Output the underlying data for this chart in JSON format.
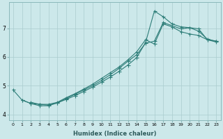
{
  "xlabel": "Humidex (Indice chaleur)",
  "ylabel": "",
  "bg_color": "#cce8ea",
  "grid_color": "#aaccce",
  "line_color": "#2d7d78",
  "marker_color": "#2d7d78",
  "xlim": [
    -0.5,
    23.5
  ],
  "ylim": [
    3.8,
    7.9
  ],
  "xticks": [
    0,
    1,
    2,
    3,
    4,
    5,
    6,
    7,
    8,
    9,
    10,
    11,
    12,
    13,
    14,
    15,
    16,
    17,
    18,
    19,
    20,
    21,
    22,
    23
  ],
  "yticks": [
    4,
    5,
    6,
    7
  ],
  "line1_x": [
    0,
    1,
    2,
    3,
    4,
    5,
    6,
    7,
    8,
    9,
    10,
    11,
    12,
    13,
    14,
    15,
    16,
    17,
    18,
    19,
    20,
    21,
    22,
    23
  ],
  "line1_y": [
    4.85,
    4.5,
    4.38,
    4.3,
    4.3,
    4.4,
    4.52,
    4.65,
    4.8,
    4.95,
    5.12,
    5.3,
    5.5,
    5.72,
    5.98,
    6.5,
    7.6,
    7.4,
    7.15,
    7.05,
    7.02,
    6.98,
    6.6,
    6.52
  ],
  "line2_x": [
    1,
    2,
    3,
    4,
    5,
    6,
    7,
    8,
    9,
    10,
    11,
    12,
    13,
    14,
    15,
    16,
    17,
    19,
    20,
    21,
    22,
    23
  ],
  "line2_y": [
    4.5,
    4.38,
    4.35,
    4.32,
    4.4,
    4.55,
    4.7,
    4.85,
    5.0,
    5.18,
    5.38,
    5.6,
    5.85,
    6.08,
    6.48,
    6.55,
    7.2,
    6.98,
    7.02,
    6.9,
    6.62,
    6.55
  ],
  "line3_x": [
    2,
    3,
    4,
    5,
    6,
    7,
    8,
    9,
    10,
    11,
    12,
    13,
    14,
    15,
    16,
    17,
    18,
    19,
    20,
    21,
    22,
    23
  ],
  "line3_y": [
    4.42,
    4.35,
    4.35,
    4.42,
    4.58,
    4.72,
    4.88,
    5.05,
    5.25,
    5.45,
    5.65,
    5.9,
    6.18,
    6.6,
    6.45,
    7.15,
    7.05,
    6.88,
    6.8,
    6.75,
    6.6,
    6.55
  ]
}
